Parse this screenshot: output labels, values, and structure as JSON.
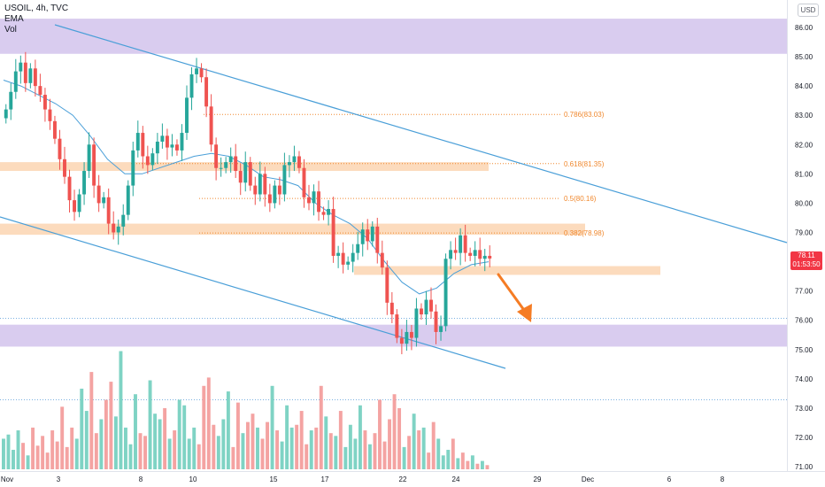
{
  "legend": {
    "symbol": "USOIL, 4h, TVC",
    "ema": "EMA",
    "vol": "Vol"
  },
  "currency": "USD",
  "last_price": {
    "value": "78.11",
    "countdown": "01:53:50"
  },
  "colors": {
    "up": "#26a69a",
    "down": "#ef5350",
    "vol_up": "#7fd3c4",
    "vol_down": "#f4a3a2",
    "ema": "#4a9fd8",
    "channel": "#4a9fd8",
    "supply_zone": "#d7c9ee",
    "support_zone": "#fcd9b9",
    "fib": "#f0882e",
    "arrow": "#f57c24",
    "last_price": "#f23645"
  },
  "chart_data": {
    "type": "candlestick",
    "title": "USOIL, 4h, TVC",
    "ylim": [
      70.8,
      86.6
    ],
    "y_ticks": [
      "86.00",
      "85.00",
      "84.00",
      "83.00",
      "82.00",
      "81.00",
      "80.00",
      "79.00",
      "78.00",
      "77.00",
      "76.00",
      "75.00",
      "74.00",
      "73.00",
      "72.00",
      "71.00"
    ],
    "x_ticks": [
      "Nov",
      "3",
      "8",
      "10",
      "15",
      "17",
      "22",
      "24",
      "29",
      "Dec",
      "6",
      "8"
    ],
    "fib_levels": [
      {
        "label": "0.786(83.03)",
        "value": 83.03
      },
      {
        "label": "0.618(81.35)",
        "value": 81.35
      },
      {
        "label": "0.5(80.16)",
        "value": 80.16
      },
      {
        "label": "0.382(78.98)",
        "value": 78.98
      }
    ],
    "zones": [
      {
        "kind": "supply",
        "low": 85.1,
        "high": 86.3
      },
      {
        "kind": "resistance",
        "low": 81.1,
        "high": 81.4
      },
      {
        "kind": "resistance",
        "low": 78.92,
        "high": 79.3
      },
      {
        "kind": "support",
        "low": 77.55,
        "high": 77.85
      },
      {
        "kind": "demand",
        "low": 75.1,
        "high": 75.85
      }
    ],
    "closes": [
      83.2,
      83.8,
      84.5,
      84.8,
      84.1,
      84.6,
      84.0,
      83.7,
      83.2,
      82.8,
      82.2,
      81.5,
      80.9,
      80.1,
      79.7,
      80.3,
      81.1,
      82.0,
      80.6,
      80.0,
      80.2,
      79.3,
      79.0,
      79.2,
      79.6,
      80.6,
      81.8,
      82.4,
      81.6,
      81.3,
      81.7,
      82.1,
      82.3,
      81.9,
      82.0,
      81.8,
      82.4,
      83.6,
      84.4,
      84.6,
      84.3,
      83.3,
      82.0,
      81.2,
      81.2,
      81.4,
      81.6,
      81.1,
      80.7,
      81.4,
      80.6,
      80.3,
      81.0,
      80.3,
      80.0,
      80.6,
      80.3,
      81.3,
      81.4,
      81.6,
      81.2,
      80.2,
      80.0,
      80.4,
      79.7,
      79.6,
      79.8,
      78.2,
      78.3,
      77.9,
      78.0,
      78.3,
      78.6,
      79.1,
      78.7,
      79.2,
      78.3,
      77.8,
      76.6,
      76.2,
      75.4,
      75.2,
      75.6,
      75.4,
      76.4,
      76.2,
      76.7,
      76.3,
      75.6,
      75.8,
      78.1,
      78.4,
      78.3,
      78.9,
      78.3,
      78.2,
      78.4,
      78.1,
      78.2,
      78.11
    ],
    "ema": [
      84.2,
      84.0,
      83.7,
      83.4,
      83.0,
      82.3,
      81.5,
      81.0,
      81.0,
      81.2,
      81.4,
      81.6,
      81.7,
      81.6,
      81.3,
      80.9,
      80.8,
      80.6,
      80.0,
      79.6,
      79.3,
      78.8,
      78.0,
      77.3,
      76.9,
      77.1,
      77.6,
      77.9,
      78.0
    ],
    "volume": [
      22,
      25,
      14,
      28,
      19,
      10,
      30,
      17,
      24,
      12,
      28,
      20,
      45,
      16,
      30,
      22,
      58,
      42,
      70,
      26,
      36,
      50,
      63,
      38,
      85,
      30,
      18,
      54,
      26,
      24,
      64,
      40,
      36,
      44,
      22,
      28,
      50,
      46,
      22,
      30,
      18,
      60,
      66,
      32,
      24,
      36,
      56,
      16,
      48,
      26,
      34,
      40,
      30,
      22,
      34,
      60,
      28,
      20,
      46,
      30,
      32,
      42,
      18,
      28,
      30,
      60,
      38,
      26,
      24,
      42,
      16,
      32,
      22,
      46,
      28,
      18,
      26,
      50,
      20,
      36,
      54,
      44,
      16,
      24,
      40,
      28,
      30,
      12,
      34,
      22,
      10,
      14,
      22,
      8,
      12,
      6,
      10,
      4,
      6,
      3
    ]
  }
}
